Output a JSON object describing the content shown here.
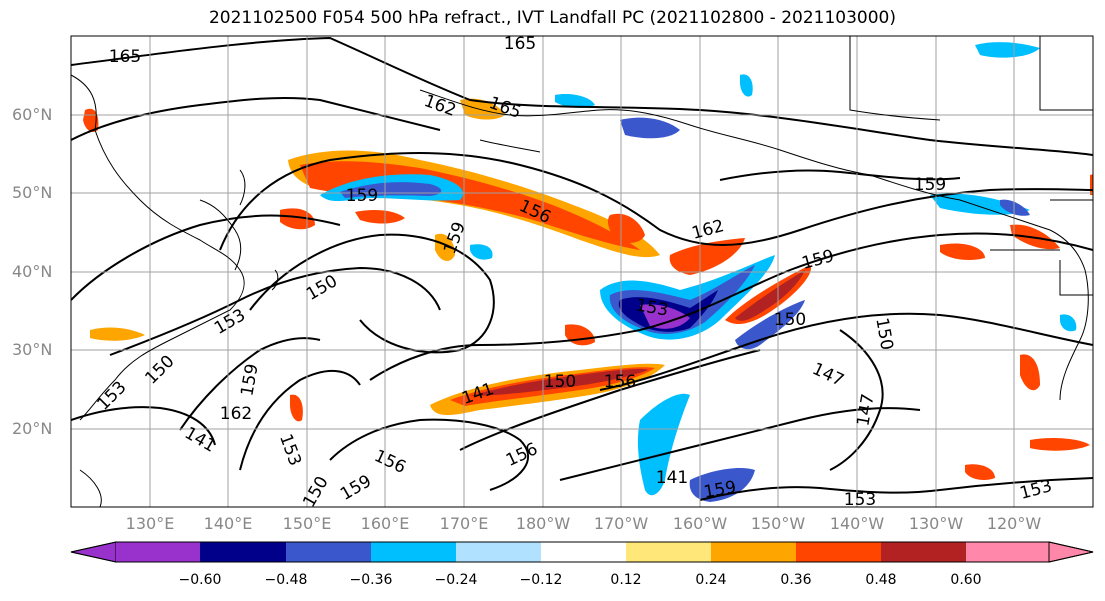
{
  "title": "2021102500 F054 500 hPa refract., IVT Landfall PC (2021102800 - 2021103000)",
  "lat_labels": [
    "60°N",
    "50°N",
    "40°N",
    "30°N",
    "20°N"
  ],
  "lon_labels": [
    "130°E",
    "140°E",
    "150°E",
    "160°E",
    "170°E",
    "180°W",
    "170°W",
    "160°W",
    "150°W",
    "140°W",
    "130°W",
    "120°W"
  ],
  "colorbar": {
    "colors": [
      "#9932cc",
      "#00008b",
      "#3a57cc",
      "#00bfff",
      "#b0e2ff",
      "#ffffff",
      "#ffe77a",
      "#ffa500",
      "#ff4500",
      "#b22222",
      "#ff88aa"
    ],
    "tick_labels": [
      "−0.60",
      "−0.48",
      "−0.36",
      "−0.24",
      "−0.12",
      "0.12",
      "0.24",
      "0.36",
      "0.48",
      "0.60"
    ]
  },
  "contour_labels": [
    "165",
    "165",
    "162",
    "165",
    "159",
    "159",
    "156",
    "159",
    "162",
    "159",
    "150",
    "153",
    "153",
    "150",
    "150",
    "159",
    "147",
    "150",
    "141",
    "150",
    "156",
    "147",
    "141",
    "153",
    "162",
    "153",
    "150",
    "159",
    "156",
    "156",
    "141",
    "159",
    "153",
    "153"
  ]
}
